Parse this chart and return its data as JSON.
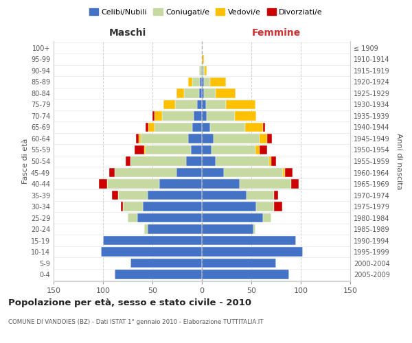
{
  "age_groups": [
    "0-4",
    "5-9",
    "10-14",
    "15-19",
    "20-24",
    "25-29",
    "30-34",
    "35-39",
    "40-44",
    "45-49",
    "50-54",
    "55-59",
    "60-64",
    "65-69",
    "70-74",
    "75-79",
    "80-84",
    "85-89",
    "90-94",
    "95-99",
    "100+"
  ],
  "birth_years": [
    "2005-2009",
    "2000-2004",
    "1995-1999",
    "1990-1994",
    "1985-1989",
    "1980-1984",
    "1975-1979",
    "1970-1974",
    "1965-1969",
    "1960-1964",
    "1955-1959",
    "1950-1954",
    "1945-1949",
    "1940-1944",
    "1935-1939",
    "1930-1934",
    "1925-1929",
    "1920-1924",
    "1915-1919",
    "1910-1914",
    "≤ 1909"
  ],
  "male": {
    "celibe": [
      88,
      72,
      102,
      100,
      55,
      65,
      60,
      55,
      43,
      26,
      16,
      11,
      14,
      10,
      8,
      5,
      3,
      2,
      1,
      0,
      0
    ],
    "coniugato": [
      0,
      0,
      0,
      0,
      3,
      10,
      20,
      30,
      53,
      62,
      56,
      46,
      48,
      38,
      32,
      22,
      15,
      8,
      2,
      0,
      0
    ],
    "vedovo": [
      0,
      0,
      0,
      0,
      0,
      0,
      0,
      0,
      0,
      0,
      0,
      1,
      2,
      6,
      8,
      12,
      8,
      4,
      0,
      0,
      0
    ],
    "divorziato": [
      0,
      0,
      0,
      0,
      0,
      0,
      2,
      6,
      8,
      6,
      5,
      10,
      3,
      3,
      2,
      0,
      0,
      0,
      0,
      0,
      0
    ]
  },
  "female": {
    "nubile": [
      88,
      75,
      102,
      95,
      52,
      62,
      55,
      45,
      38,
      22,
      14,
      10,
      12,
      8,
      5,
      4,
      2,
      2,
      1,
      0,
      0
    ],
    "coniugata": [
      0,
      0,
      0,
      0,
      2,
      8,
      18,
      28,
      52,
      60,
      54,
      44,
      46,
      36,
      28,
      20,
      12,
      6,
      2,
      0,
      0
    ],
    "vedova": [
      0,
      0,
      0,
      0,
      0,
      0,
      0,
      0,
      0,
      2,
      2,
      4,
      8,
      18,
      22,
      30,
      20,
      16,
      2,
      2,
      0
    ],
    "divorziata": [
      0,
      0,
      0,
      0,
      0,
      0,
      8,
      4,
      8,
      8,
      5,
      8,
      5,
      2,
      0,
      0,
      0,
      0,
      0,
      0,
      0
    ]
  },
  "colors": {
    "celibe": "#4472c4",
    "coniugato": "#c5d9a0",
    "vedovo": "#ffc000",
    "divorziato": "#cc0000"
  },
  "xlim": 150,
  "title": "Popolazione per età, sesso e stato civile - 2010",
  "subtitle": "COMUNE DI VANDOIES (BZ) - Dati ISTAT 1° gennaio 2010 - Elaborazione TUTTITALIA.IT",
  "ylabel_left": "Fasce di età",
  "ylabel_right": "Anni di nascita",
  "xlabel_left": "Maschi",
  "xlabel_right": "Femmine",
  "legend_labels": [
    "Celibi/Nubili",
    "Coniugati/e",
    "Vedovi/e",
    "Divorziati/e"
  ],
  "background_color": "#ffffff",
  "grid_color": "#cccccc"
}
